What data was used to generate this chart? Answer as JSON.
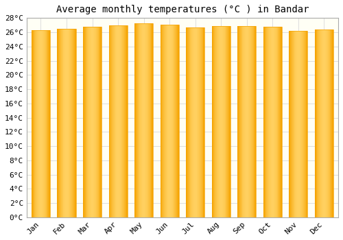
{
  "title": "Average monthly temperatures (°C ) in Bandar",
  "months": [
    "Jan",
    "Feb",
    "Mar",
    "Apr",
    "May",
    "Jun",
    "Jul",
    "Aug",
    "Sep",
    "Oct",
    "Nov",
    "Dec"
  ],
  "values": [
    26.3,
    26.5,
    26.8,
    27.0,
    27.3,
    27.1,
    26.7,
    26.9,
    26.9,
    26.8,
    26.2,
    26.4
  ],
  "ylim": [
    0,
    28
  ],
  "ytick_step": 2,
  "bar_color_center": "#FFD060",
  "bar_color_edge": "#F5A300",
  "background_color": "#FFFFFF",
  "plot_bg_color": "#FFFFF5",
  "grid_color": "#DDDDDD",
  "title_fontsize": 10,
  "tick_fontsize": 8,
  "font_family": "monospace",
  "bar_width": 0.72
}
